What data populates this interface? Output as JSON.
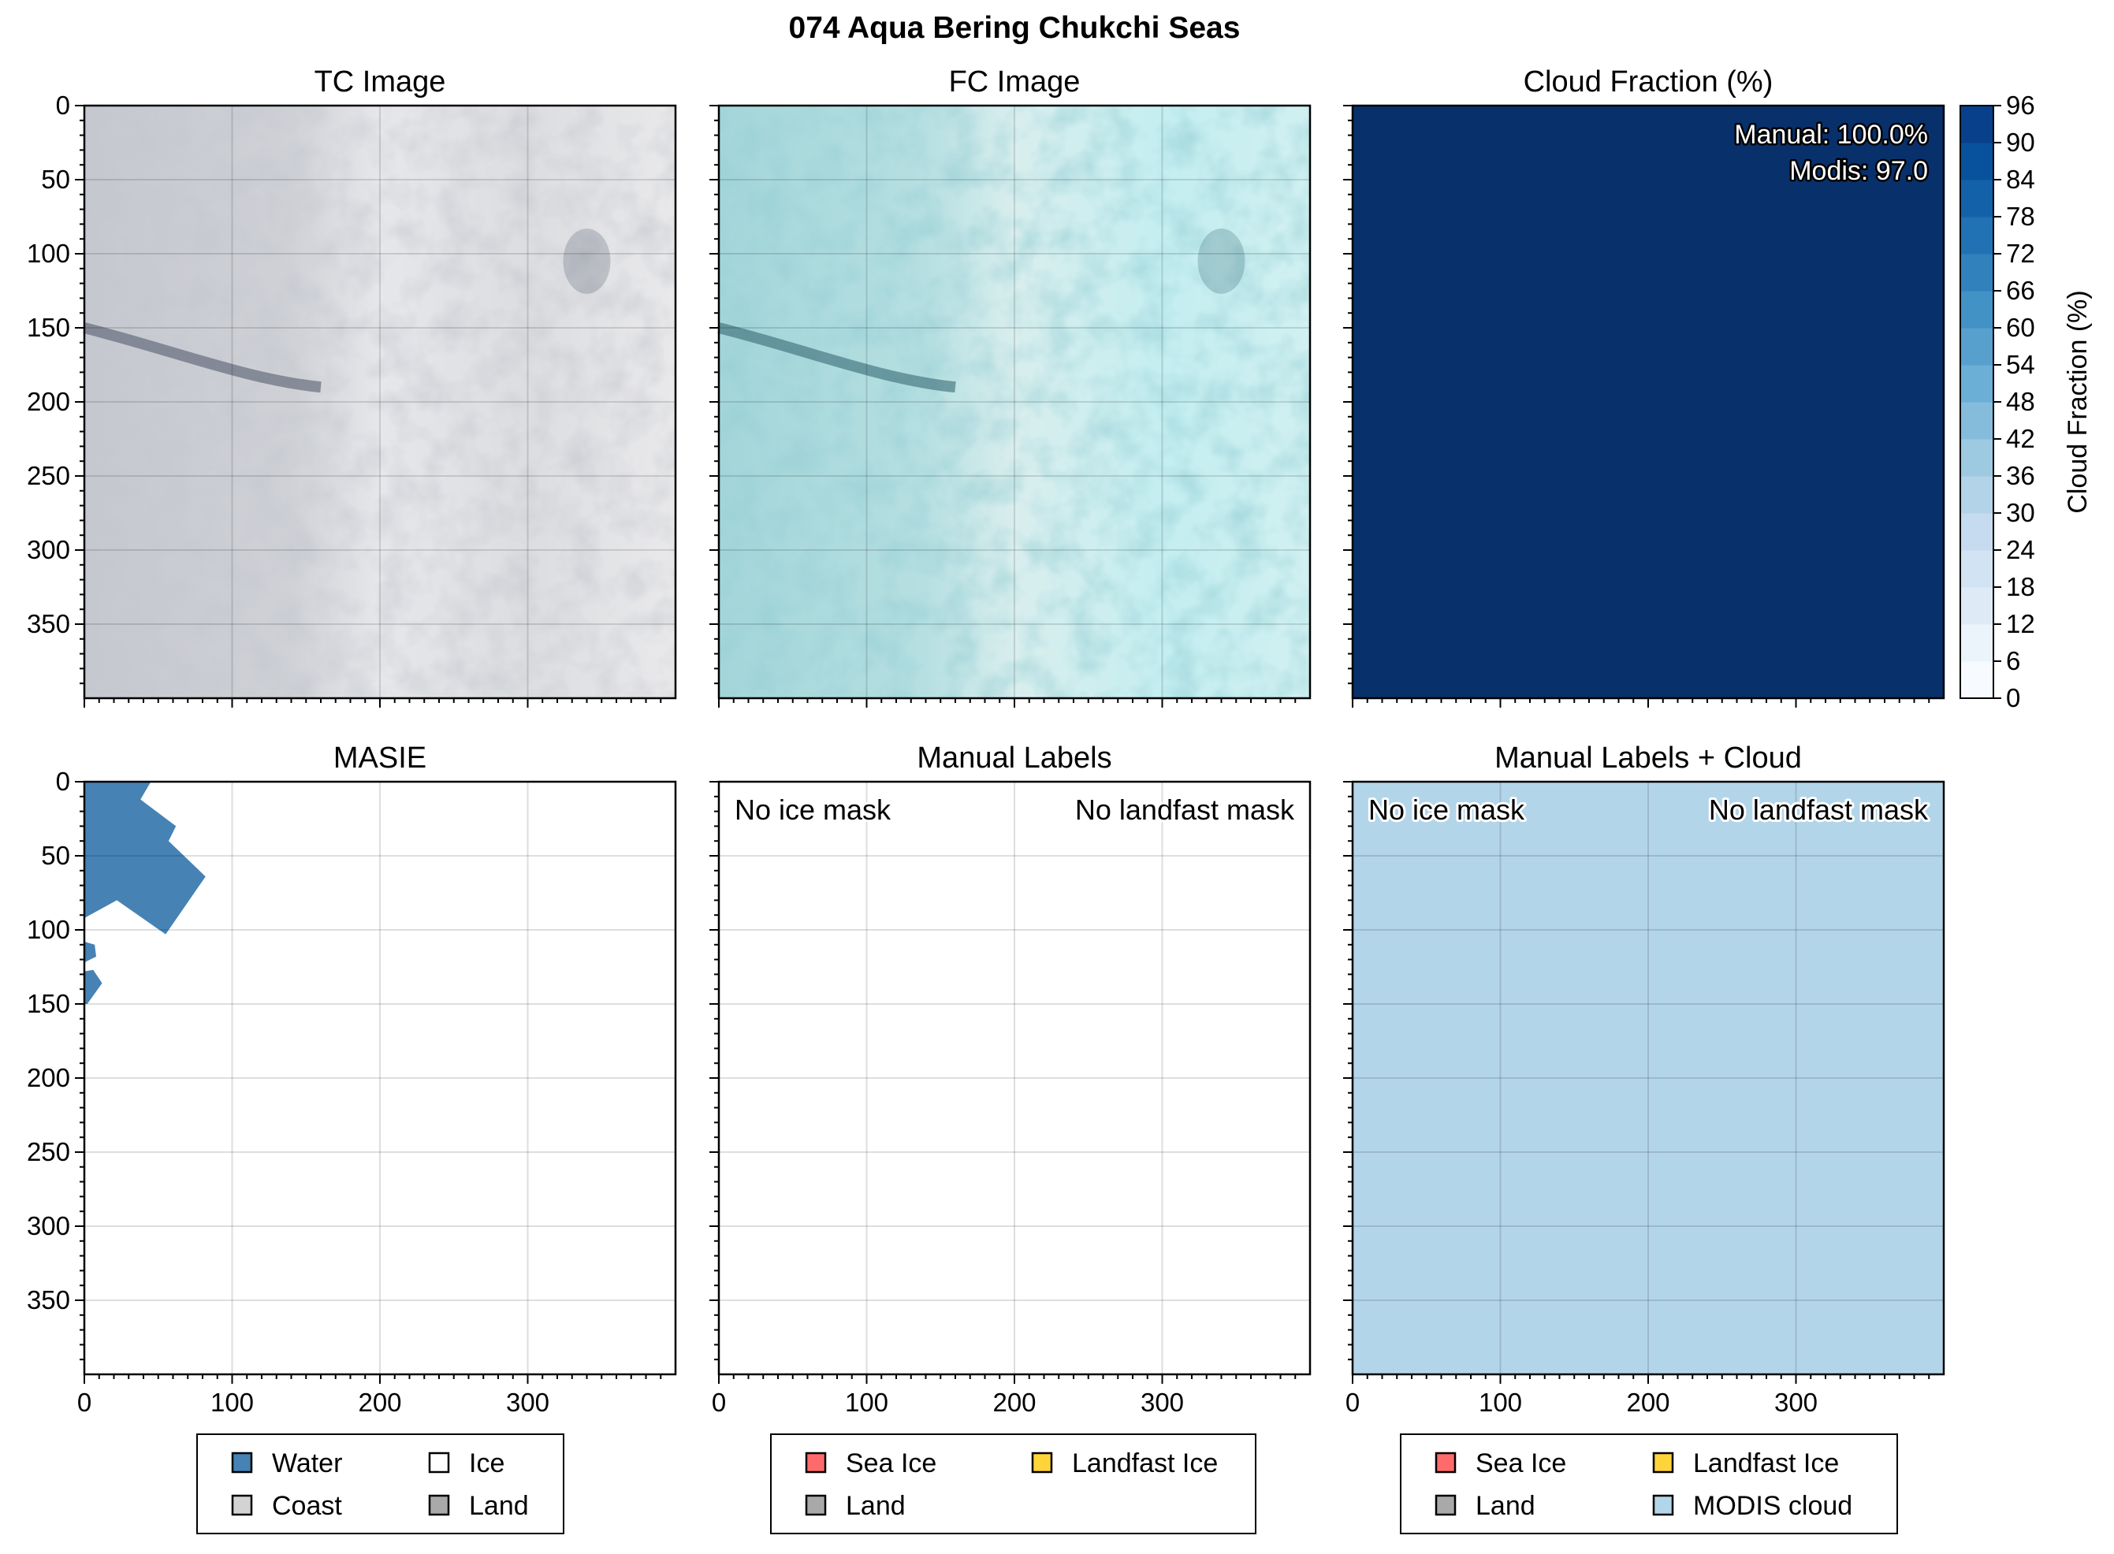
{
  "figure_title": "074 Aqua Bering Chukchi Seas",
  "chart_data": [
    {
      "id": "tc",
      "type": "image",
      "title": "TC Image",
      "xlim": [
        0,
        400
      ],
      "ylim": [
        400,
        0
      ],
      "xticks": [],
      "yticks": [
        0,
        50,
        100,
        150,
        200,
        250,
        300,
        350
      ],
      "grid": true
    },
    {
      "id": "fc",
      "type": "image",
      "title": "FC Image",
      "xlim": [
        0,
        400
      ],
      "ylim": [
        400,
        0
      ],
      "xticks": [],
      "yticks": [],
      "grid": true
    },
    {
      "id": "cloud",
      "type": "heatmap",
      "title": "Cloud Fraction (%)",
      "xlim": [
        0,
        400
      ],
      "ylim": [
        400,
        0
      ],
      "value": 97.0,
      "annotations": [
        "Manual: 100.0%",
        "Modis: 97.0"
      ],
      "colorbar": {
        "label": "Cloud Fraction (%)",
        "ticks": [
          0,
          6,
          12,
          18,
          24,
          30,
          36,
          42,
          48,
          54,
          60,
          66,
          72,
          78,
          84,
          90,
          96
        ],
        "colors": [
          "#f7fbff",
          "#ebf3fb",
          "#deebf7",
          "#d2e3f3",
          "#c6dbef",
          "#b3d3e8",
          "#9ecae1",
          "#85bcdc",
          "#6baed6",
          "#57a0ce",
          "#4292c6",
          "#3181bd",
          "#2171b5",
          "#1361a9",
          "#08519c",
          "#08408b"
        ],
        "top_color": "#08306b"
      }
    },
    {
      "id": "masie",
      "type": "map",
      "title": "MASIE",
      "xlim": [
        0,
        400
      ],
      "ylim": [
        400,
        0
      ],
      "xticks": [
        0,
        100,
        200,
        300
      ],
      "yticks": [
        0,
        50,
        100,
        150,
        200,
        250,
        300,
        350
      ],
      "water_color": "#4682b4",
      "legend": [
        {
          "label": "Water",
          "color": "#4682b4"
        },
        {
          "label": "Ice",
          "color": "#ffffff"
        },
        {
          "label": "Coast",
          "color": "#d3d3d3"
        },
        {
          "label": "Land",
          "color": "#a9a9a9"
        }
      ]
    },
    {
      "id": "manual",
      "type": "map",
      "title": "Manual Labels",
      "xlim": [
        0,
        400
      ],
      "ylim": [
        400,
        0
      ],
      "xticks": [
        0,
        100,
        200,
        300
      ],
      "yticks": [],
      "annotations": [
        "No ice mask",
        "No landfast mask"
      ],
      "legend": [
        {
          "label": "Sea Ice",
          "color": "#ff6b6b"
        },
        {
          "label": "Landfast Ice",
          "color": "#ffd43b"
        },
        {
          "label": "Land",
          "color": "#a9a9a9"
        }
      ]
    },
    {
      "id": "manualcloud",
      "type": "map",
      "title": "Manual Labels + Cloud",
      "xlim": [
        0,
        400
      ],
      "ylim": [
        400,
        0
      ],
      "xticks": [
        0,
        100,
        200,
        300
      ],
      "yticks": [],
      "fill_color": "#b3d5e9",
      "annotations": [
        "No ice mask",
        "No landfast mask"
      ],
      "legend": [
        {
          "label": "Sea Ice",
          "color": "#ff6b6b"
        },
        {
          "label": "Landfast Ice",
          "color": "#ffd43b"
        },
        {
          "label": "Land",
          "color": "#a9a9a9"
        },
        {
          "label": "MODIS cloud",
          "color": "#b3d5e9"
        }
      ]
    }
  ]
}
